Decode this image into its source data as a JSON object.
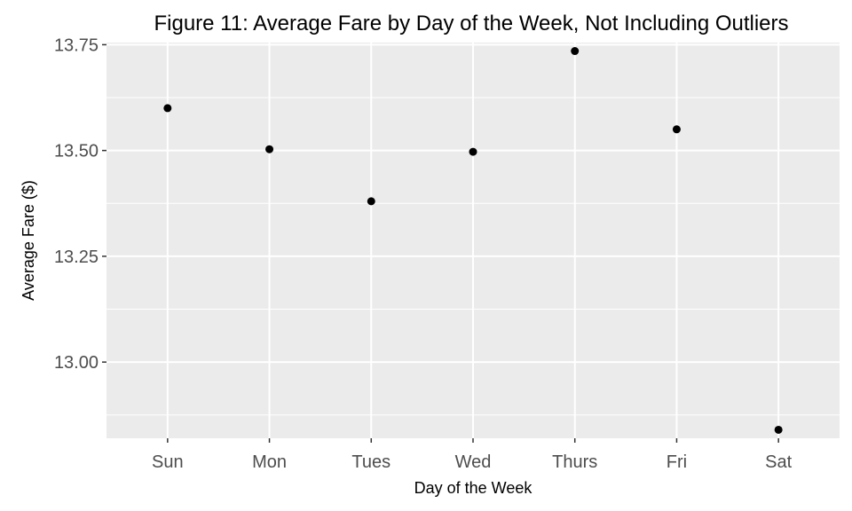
{
  "chart_data": {
    "type": "scatter",
    "title": "Figure 11: Average Fare by Day of the Week, Not Including Outliers",
    "xlabel": "Day of the Week",
    "ylabel": "Average Fare ($)",
    "categories": [
      "Sun",
      "Mon",
      "Tues",
      "Wed",
      "Thurs",
      "Fri",
      "Sat"
    ],
    "values": [
      13.6,
      13.503,
      13.38,
      13.497,
      13.735,
      13.55,
      12.84
    ],
    "ylim": [
      12.82,
      13.755
    ],
    "yticks": [
      "13.00",
      "13.25",
      "13.50",
      "13.75"
    ],
    "grid": true,
    "colors": {
      "panel": "#ebebeb",
      "grid_major": "#ffffff",
      "point": "#000000"
    }
  }
}
